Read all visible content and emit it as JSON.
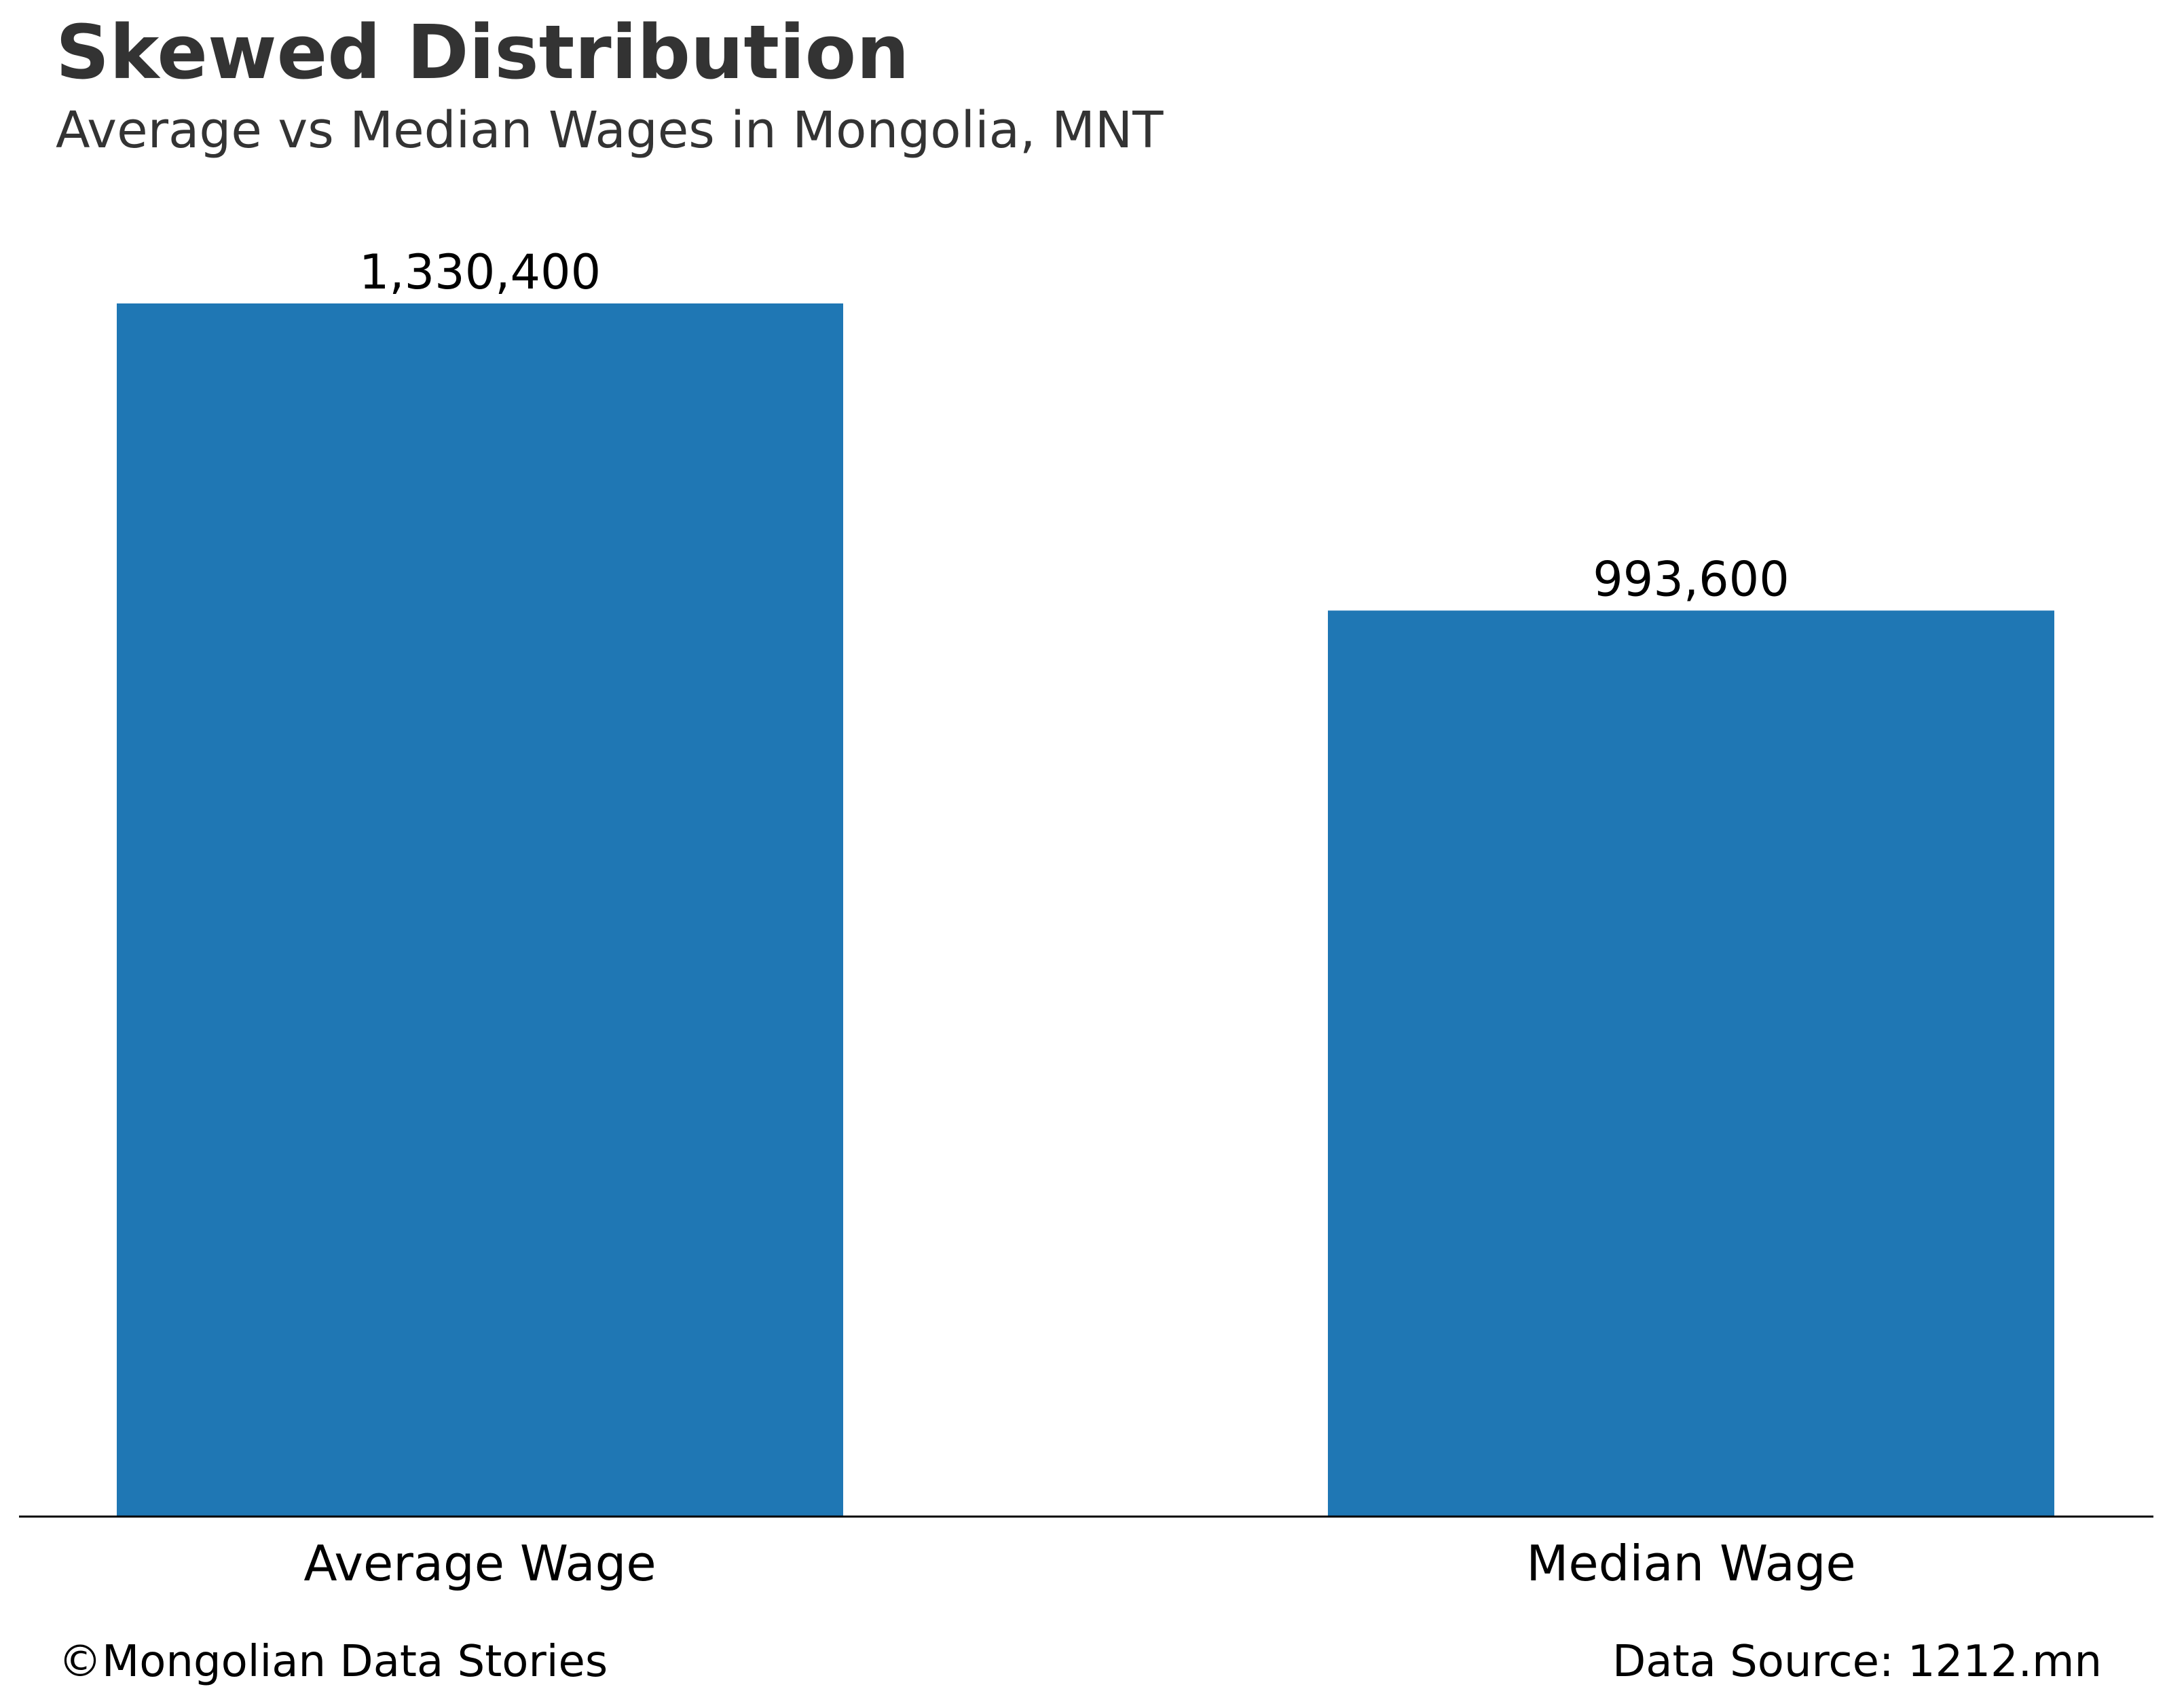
{
  "chart_data": {
    "type": "bar",
    "title": "Skewed Distribution",
    "subtitle": "Average vs Median Wages in Mongolia, MNT",
    "categories": [
      "Average Wage",
      "Median Wage"
    ],
    "values": [
      1330400,
      993600
    ],
    "value_labels": [
      "1,330,400",
      "993,600"
    ],
    "ylim": [
      0,
      1400000
    ],
    "grid": false,
    "y_axis_visible": false,
    "bar_color": "#1f77b4",
    "axis_color": "#000000"
  },
  "footer": {
    "credit": "©Mongolian Data Stories",
    "source": "Data Source: 1212.mn"
  }
}
